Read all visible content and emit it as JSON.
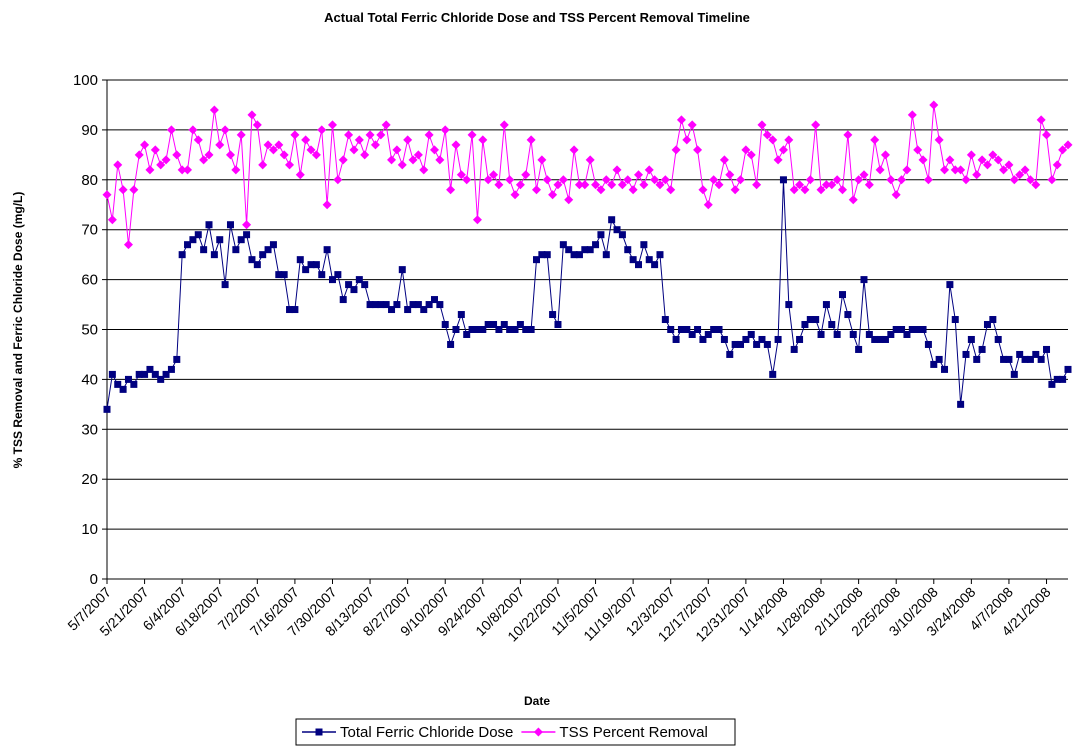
{
  "chart_data": {
    "type": "line",
    "title": "Actual Total Ferric Chloride Dose and TSS Percent Removal Timeline",
    "x_label": "Date",
    "y_label": "% TSS Removal and Ferric Chloride Dose (mg/L)",
    "categories": [
      "5/7/2007",
      null,
      null,
      null,
      null,
      null,
      null,
      "5/21/2007",
      null,
      null,
      null,
      null,
      null,
      null,
      "6/4/2007",
      null,
      null,
      null,
      null,
      null,
      null,
      "6/18/2007",
      null,
      null,
      null,
      null,
      null,
      null,
      "7/2/2007",
      null,
      null,
      null,
      null,
      null,
      null,
      "7/16/2007",
      null,
      null,
      null,
      null,
      null,
      null,
      "7/30/2007",
      null,
      null,
      null,
      null,
      null,
      null,
      "8/13/2007",
      null,
      null,
      null,
      null,
      null,
      null,
      "8/27/2007",
      null,
      null,
      null,
      null,
      null,
      null,
      "9/10/2007",
      null,
      null,
      null,
      null,
      null,
      null,
      "9/24/2007",
      null,
      null,
      null,
      null,
      null,
      null,
      "10/8/2007",
      null,
      null,
      null,
      null,
      null,
      null,
      "10/22/2007",
      null,
      null,
      null,
      null,
      null,
      null,
      "11/5/2007",
      null,
      null,
      null,
      null,
      null,
      null,
      "11/19/2007",
      null,
      null,
      null,
      null,
      null,
      null,
      "12/3/2007",
      null,
      null,
      null,
      null,
      null,
      null,
      "12/17/2007",
      null,
      null,
      null,
      null,
      null,
      null,
      "12/31/2007",
      null,
      null,
      null,
      null,
      null,
      null,
      "1/14/2008",
      null,
      null,
      null,
      null,
      null,
      null,
      "1/28/2008",
      null,
      null,
      null,
      null,
      null,
      null,
      "2/11/2008",
      null,
      null,
      null,
      null,
      null,
      null,
      "2/25/2008",
      null,
      null,
      null,
      null,
      null,
      null,
      "3/10/2008",
      null,
      null,
      null,
      null,
      null,
      null,
      "3/24/2008",
      null,
      null,
      null,
      null,
      null,
      null,
      "4/7/2008",
      null,
      null,
      null,
      null,
      null,
      null,
      "4/21/2008",
      null,
      null,
      null,
      null
    ],
    "series": [
      {
        "name": "Total Ferric Chloride Dose",
        "color": "#000080",
        "marker": "square",
        "values": [
          34,
          41,
          39,
          38,
          40,
          39,
          41,
          41,
          42,
          41,
          40,
          41,
          42,
          44,
          65,
          67,
          68,
          69,
          66,
          71,
          65,
          68,
          59,
          71,
          66,
          68,
          69,
          64,
          63,
          65,
          66,
          67,
          61,
          61,
          54,
          54,
          64,
          62,
          63,
          63,
          61,
          66,
          60,
          61,
          56,
          59,
          58,
          60,
          59,
          55,
          55,
          55,
          55,
          54,
          55,
          62,
          54,
          55,
          55,
          54,
          55,
          56,
          55,
          51,
          47,
          50,
          53,
          49,
          50,
          50,
          50,
          51,
          51,
          50,
          51,
          50,
          50,
          51,
          50,
          50,
          64,
          65,
          65,
          53,
          51,
          67,
          66,
          65,
          65,
          66,
          66,
          67,
          69,
          65,
          72,
          70,
          69,
          66,
          64,
          63,
          67,
          64,
          63,
          65,
          52,
          50,
          48,
          50,
          50,
          49,
          50,
          48,
          49,
          50,
          50,
          48,
          45,
          47,
          47,
          48,
          49,
          47,
          48,
          47,
          41,
          48,
          80,
          55,
          46,
          48,
          51,
          52,
          52,
          49,
          55,
          51,
          49,
          57,
          53,
          49,
          46,
          60,
          49,
          48,
          48,
          48,
          49,
          50,
          50,
          49,
          50,
          50,
          50,
          47,
          43,
          44,
          42,
          59,
          52,
          35,
          45,
          48,
          44,
          46,
          51,
          52,
          48,
          44,
          44,
          41,
          45,
          44,
          44,
          45,
          44,
          46,
          39,
          40,
          40,
          42
        ]
      },
      {
        "name": "TSS Percent Removal",
        "color": "#ff00ff",
        "marker": "diamond",
        "values": [
          77,
          72,
          83,
          78,
          67,
          78,
          85,
          87,
          82,
          86,
          83,
          84,
          90,
          85,
          82,
          82,
          90,
          88,
          84,
          85,
          94,
          87,
          90,
          85,
          82,
          89,
          71,
          93,
          91,
          83,
          87,
          86,
          87,
          85,
          83,
          89,
          81,
          88,
          86,
          85,
          90,
          75,
          91,
          80,
          84,
          89,
          86,
          88,
          85,
          89,
          87,
          89,
          91,
          84,
          86,
          83,
          88,
          84,
          85,
          82,
          89,
          86,
          84,
          90,
          78,
          87,
          81,
          80,
          89,
          72,
          88,
          80,
          81,
          79,
          91,
          80,
          77,
          79,
          81,
          88,
          78,
          84,
          80,
          77,
          79,
          80,
          76,
          86,
          79,
          79,
          84,
          79,
          78,
          80,
          79,
          82,
          79,
          80,
          78,
          81,
          79,
          82,
          80,
          79,
          80,
          78,
          86,
          92,
          88,
          91,
          86,
          78,
          75,
          80,
          79,
          84,
          81,
          78,
          80,
          86,
          85,
          79,
          91,
          89,
          88,
          84,
          86,
          88,
          78,
          79,
          78,
          80,
          91,
          78,
          79,
          79,
          80,
          78,
          89,
          76,
          80,
          81,
          79,
          88,
          82,
          85,
          80,
          77,
          80,
          82,
          93,
          86,
          84,
          80,
          95,
          88,
          82,
          84,
          82,
          82,
          80,
          85,
          81,
          84,
          83,
          85,
          84,
          82,
          83,
          80,
          81,
          82,
          80,
          79,
          92,
          89,
          80,
          83,
          86,
          87
        ]
      }
    ],
    "ylim": [
      0,
      100
    ],
    "yticks": [
      0,
      10,
      20,
      30,
      40,
      50,
      60,
      70,
      80,
      90,
      100
    ],
    "grid": true,
    "legend": "bottom"
  }
}
